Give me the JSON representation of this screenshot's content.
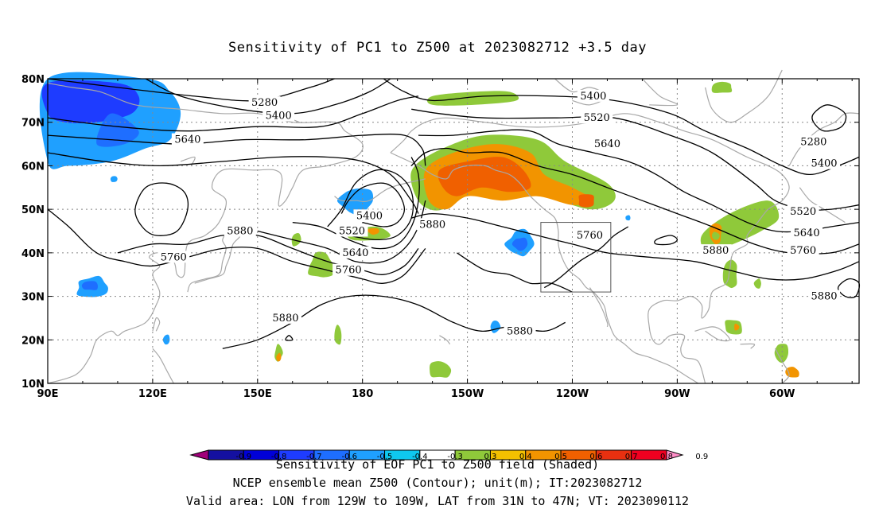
{
  "title": "Sensitivity of PC1 to Z500 at 2023082712 +3.5 day",
  "captions": {
    "line1": "Sensitivity of EOF PC1 to Z500 field (Shaded)",
    "line2": "NCEP ensemble mean Z500 (Contour); unit(m); IT:2023082712",
    "line3": "Valid area: LON from 129W to 109W, LAT from 31N to 47N; VT: 2023090112"
  },
  "axes": {
    "lat_labels": [
      "80N",
      "70N",
      "60N",
      "50N",
      "40N",
      "30N",
      "20N",
      "10N"
    ],
    "lon_labels": [
      "90E",
      "120E",
      "150E",
      "180",
      "150W",
      "120W",
      "90W",
      "60W"
    ]
  },
  "map": {
    "lon_range": [
      90,
      322
    ],
    "lat_range": [
      10,
      80
    ],
    "valid_box": {
      "lon_w": 231,
      "lon_e": 251,
      "lat_s": 31,
      "lat_n": 47
    }
  },
  "contours": [
    {
      "label": "5280",
      "lab_lon": 152,
      "lab_lat": 74.5
    },
    {
      "label": "5400",
      "lab_lon": 156,
      "lab_lat": 71.5
    },
    {
      "label": "5640",
      "lab_lon": 130,
      "lab_lat": 66
    },
    {
      "label": "5400",
      "lab_lon": 246,
      "lab_lat": 76
    },
    {
      "label": "5520",
      "lab_lon": 247,
      "lab_lat": 71
    },
    {
      "label": "5640",
      "lab_lon": 250,
      "lab_lat": 65
    },
    {
      "label": "5280",
      "lab_lon": 309,
      "lab_lat": 65.5
    },
    {
      "label": "5400",
      "lab_lon": 312,
      "lab_lat": 60.5
    },
    {
      "label": "5400",
      "lab_lon": 182,
      "lab_lat": 48.5
    },
    {
      "label": "5520",
      "lab_lon": 177,
      "lab_lat": 45
    },
    {
      "label": "5640",
      "lab_lon": 178,
      "lab_lat": 40
    },
    {
      "label": "5760",
      "lab_lon": 176,
      "lab_lat": 36
    },
    {
      "label": "5880",
      "lab_lon": 200,
      "lab_lat": 46.5
    },
    {
      "label": "5760",
      "lab_lon": 245,
      "lab_lat": 44
    },
    {
      "label": "5880",
      "lab_lon": 281,
      "lab_lat": 40.5
    },
    {
      "label": "5520",
      "lab_lon": 306,
      "lab_lat": 49.5
    },
    {
      "label": "5640",
      "lab_lon": 307,
      "lab_lat": 44.5
    },
    {
      "label": "5760",
      "lab_lon": 306,
      "lab_lat": 40.5
    },
    {
      "label": "5880",
      "lab_lon": 312,
      "lab_lat": 30
    },
    {
      "label": "5880",
      "lab_lon": 145,
      "lab_lat": 45
    },
    {
      "label": "5760",
      "lab_lon": 126,
      "lab_lat": 39
    },
    {
      "label": "5880",
      "lab_lon": 158,
      "lab_lat": 25
    },
    {
      "label": "5880",
      "lab_lon": 225,
      "lab_lat": 22
    }
  ],
  "colorbar": {
    "labels": [
      "-0.9",
      "-0.8",
      "-0.7",
      "-0.6",
      "-0.5",
      "-0.4",
      "-0.3",
      "0.3",
      "0.4",
      "0.5",
      "0.6",
      "0.7",
      "0.8",
      "0.9"
    ],
    "colors": [
      "#a0007a",
      "#1410a0",
      "#0000d8",
      "#1e3cff",
      "#1e6eff",
      "#1fa0ff",
      "#0fc8ee",
      "#ffffff",
      "#8fc93a",
      "#f4c000",
      "#f29400",
      "#f06000",
      "#e83010",
      "#f00020",
      "#ff8ec8"
    ]
  },
  "shading_colors": {
    "neg_deep": "#1e3cff",
    "neg_mid": "#1e6eff",
    "neg_light": "#1fa0ff",
    "neg_pale": "#0fc8ee",
    "pos_green": "#8fc93a",
    "pos_orange": "#f29400",
    "pos_red": "#f06000"
  }
}
